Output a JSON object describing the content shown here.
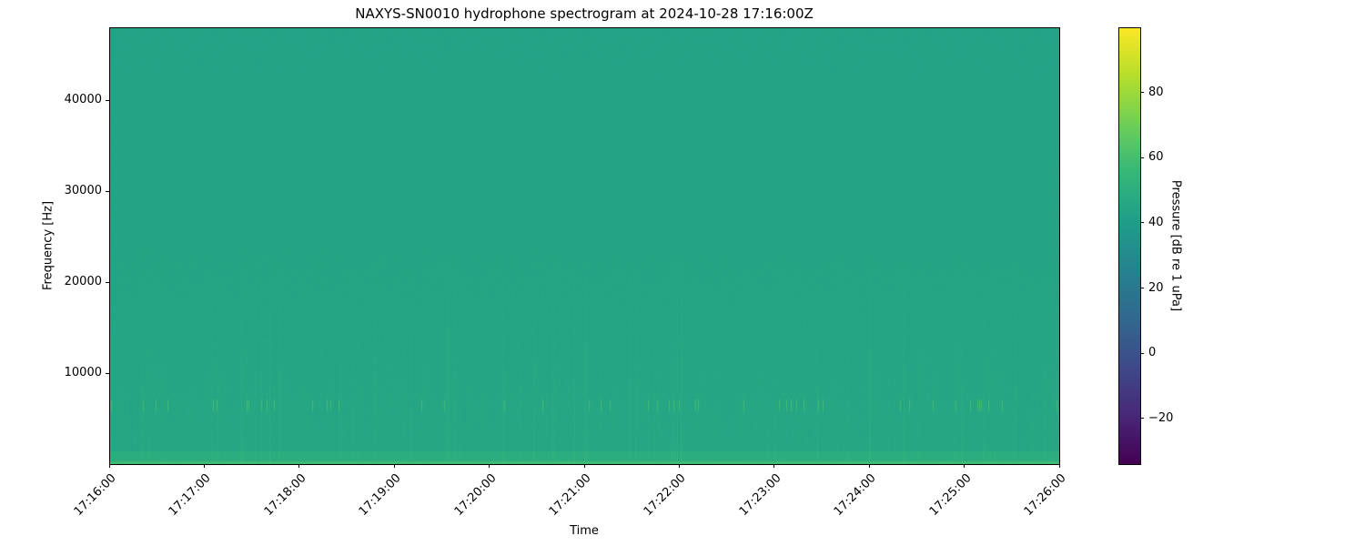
{
  "chart_data": {
    "type": "heatmap",
    "title": "NAXYS-SN0010 hydrophone spectrogram at 2024-10-28 17:16:00Z",
    "xlabel": "Time",
    "ylabel": "Frequency [Hz]",
    "colorbar_label": "Pressure [dB re 1 uPa]",
    "colormap": "viridis",
    "x_range": [
      "17:16:00",
      "17:26:00"
    ],
    "x_ticks": [
      "17:16:00",
      "17:17:00",
      "17:18:00",
      "17:19:00",
      "17:20:00",
      "17:21:00",
      "17:22:00",
      "17:23:00",
      "17:24:00",
      "17:25:00",
      "17:26:00"
    ],
    "y_range": [
      0,
      48000
    ],
    "y_ticks": [
      10000,
      20000,
      30000,
      40000
    ],
    "color_range": [
      -34,
      100
    ],
    "color_ticks": [
      -20,
      0,
      20,
      40,
      60,
      80
    ],
    "typical_level_db": 45,
    "features": {
      "low_frequency_band_db": 58,
      "tonal_band_hz": 6500,
      "tonal_band_db": 60,
      "broadband_burst_peak_db": 55
    },
    "grid": false
  }
}
